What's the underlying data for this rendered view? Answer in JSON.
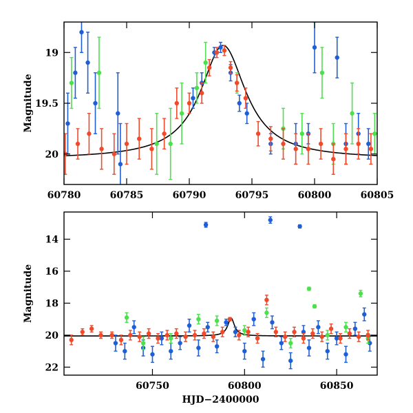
{
  "chart_data": [
    {
      "type": "scatter",
      "panel": "top",
      "xlabel": "",
      "ylabel": "Magnitude",
      "xlim": [
        60780,
        60805
      ],
      "ylim": [
        20.3,
        18.7
      ],
      "y_inverted": true,
      "xticks": [
        60780,
        60785,
        60790,
        60795,
        60800,
        60805
      ],
      "xtick_labels": [
        "60780",
        "60785",
        "60790",
        "60795",
        "60800",
        "60805"
      ],
      "yticks": [
        19,
        19.5,
        20
      ],
      "ytick_labels": [
        "19",
        "19.5",
        "20"
      ],
      "grid": false,
      "colors": {
        "blue": "#1f5fd6",
        "green": "#4ce04c",
        "red": "#f04a2a",
        "model": "#000000"
      },
      "model_curve": {
        "peak_x": 60792.7,
        "peak_mag": 18.93,
        "baseline_mag": 20.05,
        "width": 2.2
      },
      "series": [
        {
          "color": "blue",
          "points": [
            [
              60780.3,
              19.7,
              0.3
            ],
            [
              60780.9,
              19.2,
              0.25
            ],
            [
              60781.4,
              18.8,
              0.2
            ],
            [
              60781.9,
              19.1,
              0.3
            ],
            [
              60782.5,
              19.5,
              0.3
            ],
            [
              60784.3,
              19.6,
              0.4
            ],
            [
              60784.5,
              20.1,
              0.4
            ],
            [
              60790.3,
              19.45,
              0.1
            ],
            [
              60791.0,
              19.3,
              0.1
            ],
            [
              60792.0,
              19.0,
              0.05
            ],
            [
              60792.5,
              18.95,
              0.05
            ],
            [
              60793.3,
              19.2,
              0.08
            ],
            [
              60794.0,
              19.5,
              0.08
            ],
            [
              60794.6,
              19.6,
              0.1
            ],
            [
              60796.5,
              19.9,
              0.1
            ],
            [
              60798.5,
              19.9,
              0.2
            ],
            [
              60799.5,
              19.8,
              0.1
            ],
            [
              60800.0,
              18.95,
              0.25
            ],
            [
              60801.8,
              19.05,
              0.2
            ],
            [
              60802.5,
              19.9,
              0.2
            ],
            [
              60803.5,
              19.8,
              0.2
            ],
            [
              60804.3,
              19.9,
              0.15
            ]
          ]
        },
        {
          "color": "green",
          "points": [
            [
              60780.6,
              19.3,
              0.25
            ],
            [
              60782.8,
              19.2,
              0.35
            ],
            [
              60787.4,
              19.9,
              0.3
            ],
            [
              60788.5,
              19.9,
              0.35
            ],
            [
              60789.4,
              19.6,
              0.3
            ],
            [
              60790.6,
              19.35,
              0.15
            ],
            [
              60791.3,
              19.1,
              0.2
            ],
            [
              60793.8,
              19.3,
              0.1
            ],
            [
              60797.5,
              19.75,
              0.2
            ],
            [
              60799.0,
              19.8,
              0.2
            ],
            [
              60800.6,
              19.2,
              0.25
            ],
            [
              60801.5,
              19.9,
              0.2
            ],
            [
              60803.0,
              19.6,
              0.3
            ],
            [
              60804.8,
              19.8,
              0.2
            ]
          ]
        },
        {
          "color": "red",
          "points": [
            [
              60780.1,
              20.0,
              0.2
            ],
            [
              60781.1,
              19.9,
              0.15
            ],
            [
              60782.0,
              19.8,
              0.2
            ],
            [
              60783.0,
              19.95,
              0.2
            ],
            [
              60784.0,
              20.0,
              0.2
            ],
            [
              60785.0,
              19.9,
              0.2
            ],
            [
              60786.0,
              19.85,
              0.2
            ],
            [
              60787.0,
              19.95,
              0.2
            ],
            [
              60788.0,
              19.8,
              0.15
            ],
            [
              60789.0,
              19.5,
              0.15
            ],
            [
              60790.0,
              19.5,
              0.1
            ],
            [
              60791.0,
              19.4,
              0.1
            ],
            [
              60791.6,
              19.15,
              0.08
            ],
            [
              60792.2,
              19.0,
              0.05
            ],
            [
              60792.8,
              18.98,
              0.05
            ],
            [
              60793.3,
              19.15,
              0.06
            ],
            [
              60793.8,
              19.3,
              0.08
            ],
            [
              60794.5,
              19.45,
              0.1
            ],
            [
              60795.5,
              19.8,
              0.12
            ],
            [
              60796.5,
              19.85,
              0.12
            ],
            [
              60797.5,
              19.9,
              0.15
            ],
            [
              60798.5,
              19.95,
              0.15
            ],
            [
              60799.5,
              19.95,
              0.15
            ],
            [
              60800.5,
              19.9,
              0.15
            ],
            [
              60801.5,
              20.05,
              0.15
            ],
            [
              60802.5,
              19.95,
              0.15
            ],
            [
              60803.5,
              19.9,
              0.15
            ],
            [
              60804.5,
              19.95,
              0.15
            ]
          ]
        }
      ]
    },
    {
      "type": "scatter",
      "panel": "bottom",
      "xlabel": "HJD−2400000",
      "ylabel": "Magnitude",
      "xlim": [
        60702,
        60872
      ],
      "ylim": [
        22.5,
        12.3
      ],
      "y_inverted": true,
      "xticks": [
        60750,
        60800,
        60850
      ],
      "xtick_labels": [
        "60750",
        "60800",
        "60850"
      ],
      "yticks": [
        14,
        16,
        18,
        20,
        22
      ],
      "ytick_labels": [
        "14",
        "16",
        "18",
        "20",
        "22"
      ],
      "grid": false,
      "colors": {
        "blue": "#1f5fd6",
        "green": "#4ce04c",
        "red": "#f04a2a",
        "model": "#000000"
      },
      "model_curve": {
        "peak_x": 60792.7,
        "peak_mag": 18.93,
        "baseline_mag": 20.05,
        "width": 2.2
      },
      "series": [
        {
          "color": "blue",
          "points": [
            [
              60730,
              20.5,
              0.5
            ],
            [
              60735,
              21.0,
              0.5
            ],
            [
              60740,
              19.5,
              0.4
            ],
            [
              60745,
              20.8,
              0.5
            ],
            [
              60750,
              21.2,
              0.5
            ],
            [
              60755,
              20.2,
              0.4
            ],
            [
              60760,
              21.0,
              0.5
            ],
            [
              60765,
              20.5,
              0.4
            ],
            [
              60770,
              19.4,
              0.4
            ],
            [
              60775,
              20.8,
              0.5
            ],
            [
              60779,
              13.1,
              0.15
            ],
            [
              60780,
              19.5,
              0.3
            ],
            [
              60785,
              20.7,
              0.4
            ],
            [
              60790,
              19.2,
              0.2
            ],
            [
              60795,
              19.8,
              0.3
            ],
            [
              60800,
              21.0,
              0.5
            ],
            [
              60805,
              19.0,
              0.4
            ],
            [
              60810,
              21.5,
              0.5
            ],
            [
              60814,
              12.8,
              0.2
            ],
            [
              60815,
              19.2,
              0.4
            ],
            [
              60820,
              20.5,
              0.4
            ],
            [
              60825,
              21.6,
              0.5
            ],
            [
              60830,
              13.2,
              0.1
            ],
            [
              60832,
              19.8,
              0.4
            ],
            [
              60835,
              20.8,
              0.5
            ],
            [
              60840,
              19.5,
              0.4
            ],
            [
              60845,
              21.0,
              0.5
            ],
            [
              60850,
              20.2,
              0.4
            ],
            [
              60855,
              21.2,
              0.5
            ],
            [
              60860,
              19.6,
              0.4
            ],
            [
              60865,
              18.7,
              0.4
            ],
            [
              60868,
              20.5,
              0.5
            ]
          ]
        },
        {
          "color": "green",
          "points": [
            [
              60736,
              18.9,
              0.3
            ],
            [
              60745,
              20.5,
              0.4
            ],
            [
              60760,
              20.2,
              0.3
            ],
            [
              60775,
              19.0,
              0.3
            ],
            [
              60785,
              19.1,
              0.3
            ],
            [
              60800,
              19.7,
              0.3
            ],
            [
              60812,
              18.6,
              0.3
            ],
            [
              60825,
              20.5,
              0.3
            ],
            [
              60835,
              17.1,
              0.1
            ],
            [
              60838,
              18.2,
              0.1
            ],
            [
              60845,
              20.0,
              0.3
            ],
            [
              60855,
              19.5,
              0.3
            ],
            [
              60863,
              17.4,
              0.2
            ],
            [
              60867,
              20.2,
              0.3
            ]
          ]
        },
        {
          "color": "red",
          "points": [
            [
              60706,
              20.3,
              0.3
            ],
            [
              60712,
              19.8,
              0.2
            ],
            [
              60717,
              19.6,
              0.2
            ],
            [
              60722,
              20.0,
              0.2
            ],
            [
              60728,
              20.0,
              0.2
            ],
            [
              60733,
              20.3,
              0.3
            ],
            [
              60738,
              20.0,
              0.3
            ],
            [
              60743,
              20.1,
              0.3
            ],
            [
              60748,
              19.9,
              0.3
            ],
            [
              60753,
              20.2,
              0.3
            ],
            [
              60758,
              20.0,
              0.3
            ],
            [
              60763,
              19.9,
              0.3
            ],
            [
              60768,
              20.1,
              0.3
            ],
            [
              60773,
              20.0,
              0.3
            ],
            [
              60778,
              19.9,
              0.3
            ],
            [
              60783,
              20.1,
              0.3
            ],
            [
              60788,
              19.8,
              0.3
            ],
            [
              60792,
              19.0,
              0.1
            ],
            [
              60797,
              20.0,
              0.3
            ],
            [
              60802,
              19.8,
              0.3
            ],
            [
              60807,
              20.2,
              0.3
            ],
            [
              60812,
              17.8,
              0.3
            ],
            [
              60817,
              19.8,
              0.3
            ],
            [
              60822,
              20.1,
              0.3
            ],
            [
              60827,
              19.8,
              0.3
            ],
            [
              60832,
              20.2,
              0.3
            ],
            [
              60837,
              19.9,
              0.3
            ],
            [
              60842,
              20.1,
              0.3
            ],
            [
              60847,
              19.6,
              0.3
            ],
            [
              60852,
              20.2,
              0.3
            ],
            [
              60857,
              19.9,
              0.3
            ],
            [
              60862,
              20.1,
              0.3
            ],
            [
              60867,
              20.0,
              0.3
            ]
          ]
        }
      ]
    }
  ]
}
